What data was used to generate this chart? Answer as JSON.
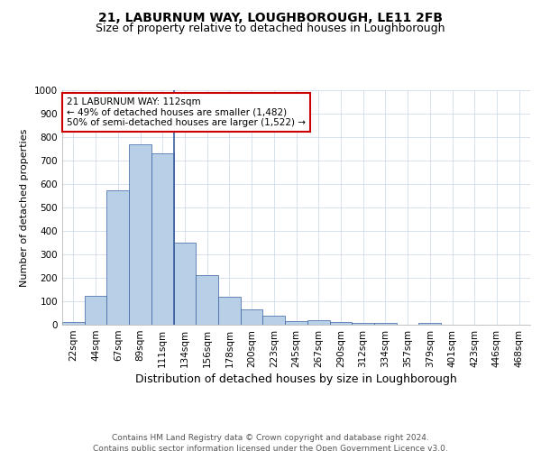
{
  "title1": "21, LABURNUM WAY, LOUGHBOROUGH, LE11 2FB",
  "title2": "Size of property relative to detached houses in Loughborough",
  "xlabel": "Distribution of detached houses by size in Loughborough",
  "ylabel": "Number of detached properties",
  "annotation_line1": "21 LABURNUM WAY: 112sqm",
  "annotation_line2": "← 49% of detached houses are smaller (1,482)",
  "annotation_line3": "50% of semi-detached houses are larger (1,522) →",
  "footnote1": "Contains HM Land Registry data © Crown copyright and database right 2024.",
  "footnote2": "Contains public sector information licensed under the Open Government Licence v3.0.",
  "bar_labels": [
    "22sqm",
    "44sqm",
    "67sqm",
    "89sqm",
    "111sqm",
    "134sqm",
    "156sqm",
    "178sqm",
    "200sqm",
    "223sqm",
    "245sqm",
    "267sqm",
    "290sqm",
    "312sqm",
    "334sqm",
    "357sqm",
    "379sqm",
    "401sqm",
    "423sqm",
    "446sqm",
    "468sqm"
  ],
  "bar_values": [
    10,
    125,
    575,
    770,
    730,
    350,
    210,
    120,
    65,
    38,
    15,
    20,
    10,
    7,
    7,
    0,
    8,
    0,
    0,
    0,
    0
  ],
  "highlight_index": 4,
  "bar_color": "#b8cfe8",
  "highlight_line_color": "#3a5fa0",
  "annotation_box_color": "#cc0000",
  "ylim": [
    0,
    1000
  ],
  "yticks": [
    0,
    100,
    200,
    300,
    400,
    500,
    600,
    700,
    800,
    900,
    1000
  ],
  "title1_fontsize": 10,
  "title2_fontsize": 9,
  "xlabel_fontsize": 9,
  "ylabel_fontsize": 8,
  "tick_fontsize": 7.5,
  "annotation_fontsize": 7.5,
  "footnote_fontsize": 6.5
}
